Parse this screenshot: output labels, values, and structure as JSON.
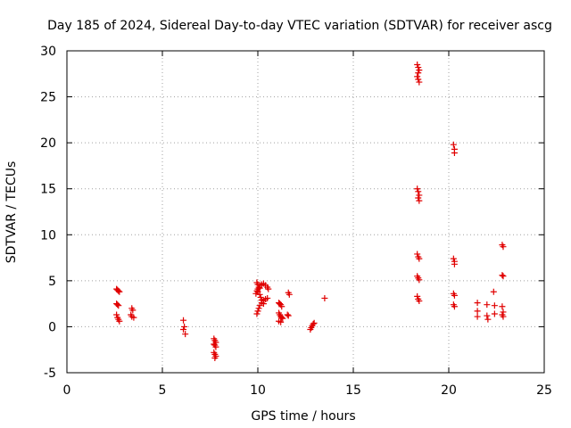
{
  "chart_data": {
    "type": "scatter",
    "title": "Day 185 of 2024, Sidereal Day-to-day VTEC variation (SDTVAR) for receiver ascg",
    "xlabel": "GPS time / hours",
    "ylabel": "SDTVAR / TECUs",
    "xlim": [
      0,
      25
    ],
    "ylim": [
      -5,
      30
    ],
    "xticks": [
      0,
      5,
      10,
      15,
      20,
      25
    ],
    "yticks": [
      -5,
      0,
      5,
      10,
      15,
      20,
      25,
      30
    ],
    "grid": true,
    "marker": "plus",
    "color": "#e00000",
    "series": [
      {
        "name": "SDTVAR",
        "points": [
          [
            2.6,
            4.1
          ],
          [
            2.65,
            4.0
          ],
          [
            2.7,
            3.9
          ],
          [
            2.75,
            3.8
          ],
          [
            2.6,
            2.5
          ],
          [
            2.65,
            2.4
          ],
          [
            2.7,
            2.3
          ],
          [
            2.6,
            1.3
          ],
          [
            2.65,
            1.0
          ],
          [
            2.7,
            0.8
          ],
          [
            2.75,
            0.6
          ],
          [
            3.4,
            2.0
          ],
          [
            3.45,
            1.8
          ],
          [
            3.35,
            1.3
          ],
          [
            3.4,
            1.1
          ],
          [
            3.5,
            1.0
          ],
          [
            6.1,
            0.7
          ],
          [
            6.15,
            0.0
          ],
          [
            6.1,
            -0.3
          ],
          [
            6.2,
            -0.8
          ],
          [
            7.7,
            -1.3
          ],
          [
            7.75,
            -1.5
          ],
          [
            7.8,
            -1.7
          ],
          [
            7.7,
            -1.9
          ],
          [
            7.75,
            -2.0
          ],
          [
            7.8,
            -2.2
          ],
          [
            7.7,
            -2.8
          ],
          [
            7.75,
            -3.0
          ],
          [
            7.8,
            -3.2
          ],
          [
            7.75,
            -3.4
          ],
          [
            9.95,
            1.4
          ],
          [
            10.0,
            1.7
          ],
          [
            10.05,
            2.0
          ],
          [
            10.1,
            2.3
          ],
          [
            10.2,
            2.6
          ],
          [
            10.3,
            2.8
          ],
          [
            10.4,
            3.0
          ],
          [
            10.5,
            3.1
          ],
          [
            9.9,
            3.6
          ],
          [
            9.95,
            3.9
          ],
          [
            10.0,
            4.1
          ],
          [
            10.05,
            4.3
          ],
          [
            10.1,
            4.5
          ],
          [
            10.2,
            4.6
          ],
          [
            10.3,
            4.7
          ],
          [
            10.4,
            4.5
          ],
          [
            10.5,
            4.3
          ],
          [
            10.55,
            4.1
          ],
          [
            9.95,
            4.8
          ],
          [
            10.0,
            4.6
          ],
          [
            10.1,
            4.2
          ],
          [
            10.0,
            3.8
          ],
          [
            10.1,
            3.5
          ],
          [
            10.15,
            3.2
          ],
          [
            10.2,
            2.9
          ],
          [
            10.3,
            2.5
          ],
          [
            11.1,
            2.6
          ],
          [
            11.15,
            2.5
          ],
          [
            11.2,
            2.4
          ],
          [
            11.25,
            2.2
          ],
          [
            11.1,
            1.5
          ],
          [
            11.15,
            1.3
          ],
          [
            11.2,
            1.1
          ],
          [
            11.25,
            1.0
          ],
          [
            11.3,
            0.9
          ],
          [
            11.1,
            0.6
          ],
          [
            11.2,
            0.5
          ],
          [
            11.55,
            1.3
          ],
          [
            11.6,
            1.2
          ],
          [
            11.6,
            3.7
          ],
          [
            11.65,
            3.5
          ],
          [
            12.75,
            -0.3
          ],
          [
            12.8,
            -0.1
          ],
          [
            12.85,
            0.1
          ],
          [
            12.9,
            0.3
          ],
          [
            12.95,
            0.4
          ],
          [
            13.5,
            3.1
          ],
          [
            18.35,
            28.5
          ],
          [
            18.4,
            28.2
          ],
          [
            18.45,
            27.9
          ],
          [
            18.4,
            27.6
          ],
          [
            18.35,
            27.2
          ],
          [
            18.4,
            26.9
          ],
          [
            18.45,
            26.6
          ],
          [
            18.35,
            15.0
          ],
          [
            18.4,
            14.7
          ],
          [
            18.45,
            14.3
          ],
          [
            18.4,
            14.0
          ],
          [
            18.45,
            13.7
          ],
          [
            18.35,
            7.9
          ],
          [
            18.4,
            7.6
          ],
          [
            18.45,
            7.4
          ],
          [
            18.35,
            5.5
          ],
          [
            18.4,
            5.3
          ],
          [
            18.45,
            5.1
          ],
          [
            18.35,
            3.3
          ],
          [
            18.4,
            3.0
          ],
          [
            18.45,
            2.8
          ],
          [
            20.25,
            19.8
          ],
          [
            20.3,
            19.3
          ],
          [
            20.3,
            18.9
          ],
          [
            20.25,
            7.4
          ],
          [
            20.3,
            7.1
          ],
          [
            20.3,
            6.8
          ],
          [
            20.25,
            3.6
          ],
          [
            20.3,
            3.4
          ],
          [
            20.25,
            2.4
          ],
          [
            20.3,
            2.2
          ],
          [
            21.5,
            2.6
          ],
          [
            21.5,
            1.7
          ],
          [
            21.5,
            1.1
          ],
          [
            22.0,
            2.4
          ],
          [
            22.0,
            1.2
          ],
          [
            22.05,
            0.8
          ],
          [
            22.35,
            3.8
          ],
          [
            22.4,
            2.3
          ],
          [
            22.4,
            1.4
          ],
          [
            22.8,
            8.9
          ],
          [
            22.85,
            8.7
          ],
          [
            22.8,
            5.6
          ],
          [
            22.85,
            5.5
          ],
          [
            22.8,
            2.2
          ],
          [
            22.85,
            1.6
          ],
          [
            22.8,
            1.3
          ],
          [
            22.85,
            1.1
          ]
        ]
      }
    ]
  }
}
